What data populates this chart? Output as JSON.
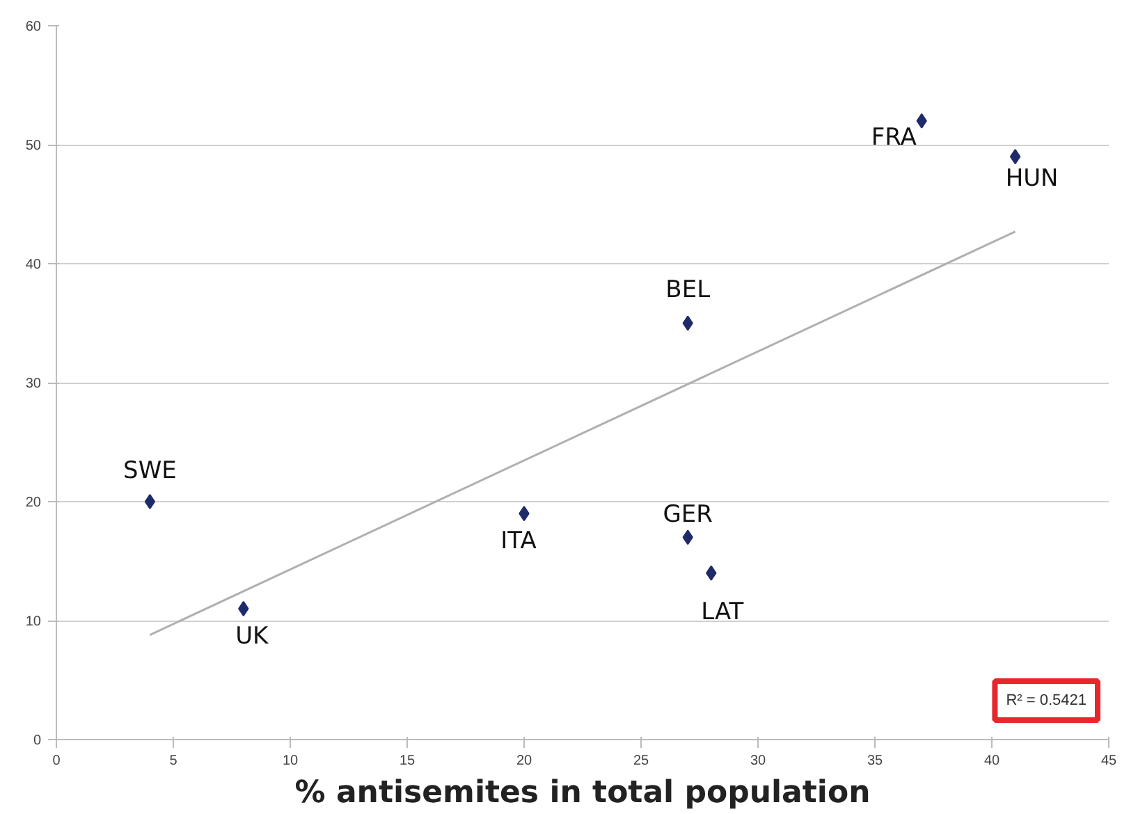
{
  "chart_data": {
    "type": "scatter",
    "xlabel": "% antisemites in total population",
    "xlim": [
      0,
      45
    ],
    "xticks": [
      0,
      5,
      10,
      15,
      20,
      25,
      30,
      35,
      40,
      45
    ],
    "ylim": [
      0,
      60
    ],
    "yticks": [
      0,
      10,
      20,
      30,
      40,
      50,
      60
    ],
    "grid": "y",
    "series": [
      {
        "color": "#1f2a6b",
        "marker": "diamond",
        "x": [
          4,
          8,
          20,
          27,
          28,
          27,
          37,
          41
        ],
        "values": [
          20,
          11,
          19,
          17,
          14,
          35,
          52,
          49
        ]
      },
      {
        "type": "line",
        "color": "#b0b0b0",
        "x": [
          4,
          41
        ],
        "values": [
          8.8,
          42.7
        ]
      }
    ],
    "annotations": [
      {
        "text": "SWE",
        "x": 4,
        "y": 20
      },
      {
        "text": "UK",
        "x": 8,
        "y": 11
      },
      {
        "text": "ITA",
        "x": 20,
        "y": 19
      },
      {
        "text": "GER",
        "x": 27,
        "y": 17
      },
      {
        "text": "LAT",
        "x": 28,
        "y": 14
      },
      {
        "text": "BEL",
        "x": 27,
        "y": 35
      },
      {
        "text": "FRA",
        "x": 37,
        "y": 52
      },
      {
        "text": "HUN",
        "x": 41,
        "y": 49
      },
      "R² = 0.5421"
    ]
  }
}
